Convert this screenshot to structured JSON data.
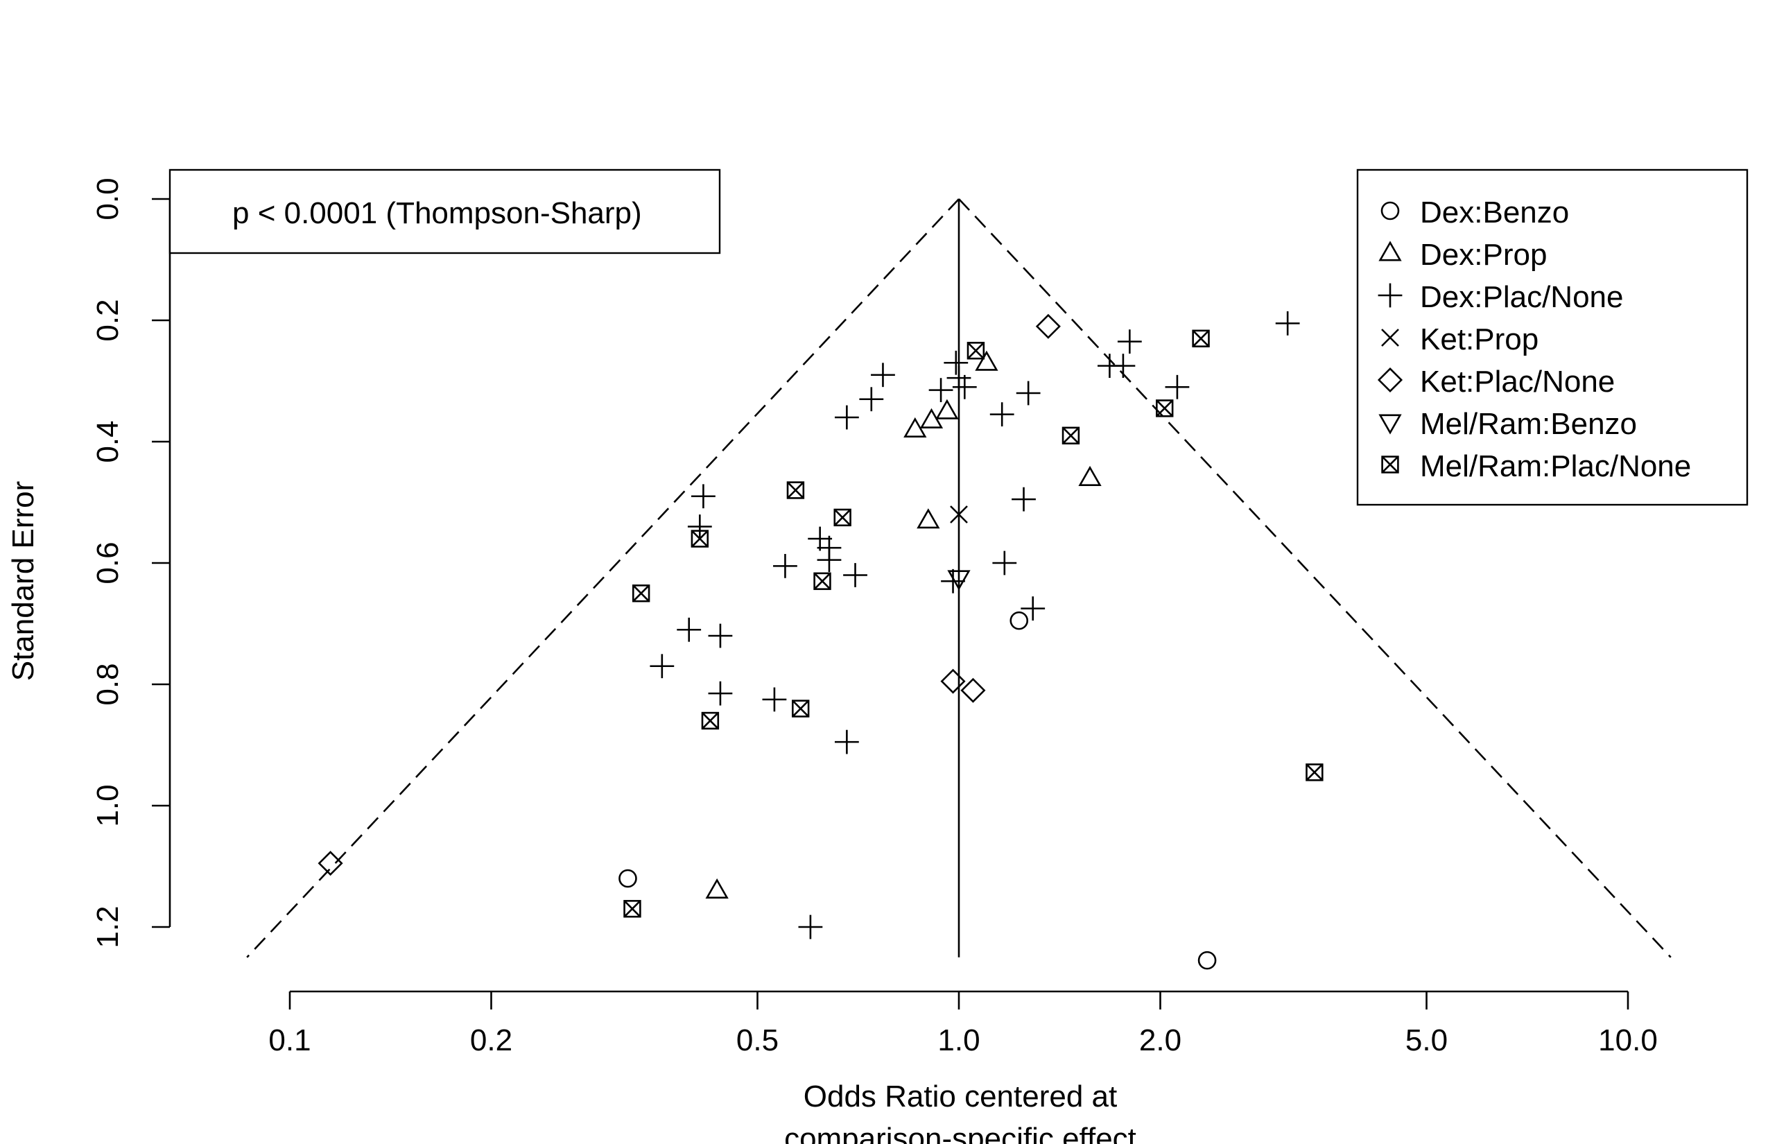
{
  "chart_data": {
    "type": "scatter",
    "title": "",
    "xlabel": "Odds Ratio centered at comparison-specific effect",
    "xlabel_lines": [
      "Odds Ratio centered at",
      "comparison-specific effect"
    ],
    "ylabel": "Standard Error",
    "x_scale": "log",
    "x_ticks": [
      0.1,
      0.2,
      0.5,
      1.0,
      2.0,
      5.0,
      10.0
    ],
    "x_tick_labels": [
      "0.1",
      "0.2",
      "0.5",
      "1.0",
      "2.0",
      "5.0",
      "10.0"
    ],
    "y_ticks": [
      0.0,
      0.2,
      0.4,
      0.6,
      0.8,
      1.0,
      1.2
    ],
    "y_tick_labels": [
      "0.0",
      "0.2",
      "0.4",
      "0.6",
      "0.8",
      "1.0",
      "1.2"
    ],
    "xlim": [
      0.1,
      10.0
    ],
    "ylim": [
      1.25,
      0.0
    ],
    "y_reversed": true,
    "grid": false,
    "annotation": "p < 0.0001 (Thompson-Sharp)",
    "annotation_placement": "top-left",
    "legend_placement": "top-right",
    "funnel": {
      "center": 1.0,
      "se_max": 1.25,
      "z": 1.96
    },
    "series": [
      {
        "name": "Dex:Benzo",
        "marker": "circle",
        "points": [
          [
            0.32,
            1.12
          ],
          [
            1.23,
            0.695
          ],
          [
            2.35,
            1.255
          ]
        ]
      },
      {
        "name": "Dex:Prop",
        "marker": "triangle-up",
        "points": [
          [
            1.1,
            0.27
          ],
          [
            0.86,
            0.38
          ],
          [
            0.91,
            0.365
          ],
          [
            0.96,
            0.35
          ],
          [
            1.57,
            0.46
          ],
          [
            0.9,
            0.53
          ],
          [
            0.435,
            1.14
          ]
        ]
      },
      {
        "name": "Dex:Plac/None",
        "marker": "plus",
        "points": [
          [
            0.99,
            0.27
          ],
          [
            1.0,
            0.295
          ],
          [
            1.02,
            0.31
          ],
          [
            0.94,
            0.315
          ],
          [
            0.77,
            0.29
          ],
          [
            0.74,
            0.33
          ],
          [
            0.68,
            0.36
          ],
          [
            1.68,
            0.275
          ],
          [
            1.8,
            0.235
          ],
          [
            1.76,
            0.275
          ],
          [
            3.1,
            0.205
          ],
          [
            2.12,
            0.31
          ],
          [
            1.27,
            0.32
          ],
          [
            1.16,
            0.355
          ],
          [
            1.25,
            0.495
          ],
          [
            0.415,
            0.49
          ],
          [
            0.41,
            0.54
          ],
          [
            0.62,
            0.56
          ],
          [
            0.64,
            0.575
          ],
          [
            0.64,
            0.595
          ],
          [
            0.7,
            0.62
          ],
          [
            0.55,
            0.605
          ],
          [
            0.98,
            0.63
          ],
          [
            1.17,
            0.6
          ],
          [
            1.29,
            0.675
          ],
          [
            0.395,
            0.71
          ],
          [
            0.44,
            0.72
          ],
          [
            0.36,
            0.77
          ],
          [
            0.44,
            0.815
          ],
          [
            0.53,
            0.825
          ],
          [
            0.68,
            0.895
          ],
          [
            0.6,
            1.2
          ]
        ]
      },
      {
        "name": "Ket:Prop",
        "marker": "cross",
        "points": [
          [
            1.0,
            0.52
          ]
        ]
      },
      {
        "name": "Ket:Plac/None",
        "marker": "diamond",
        "points": [
          [
            1.36,
            0.21
          ],
          [
            0.98,
            0.795
          ],
          [
            1.05,
            0.81
          ],
          [
            0.115,
            1.095
          ]
        ]
      },
      {
        "name": "Mel/Ram:Benzo",
        "marker": "triangle-down",
        "points": [
          [
            1.0,
            0.625
          ]
        ]
      },
      {
        "name": "Mel/Ram:Plac/None",
        "marker": "box-x",
        "points": [
          [
            1.06,
            0.25
          ],
          [
            2.3,
            0.23
          ],
          [
            2.03,
            0.345
          ],
          [
            1.47,
            0.39
          ],
          [
            0.57,
            0.48
          ],
          [
            0.67,
            0.525
          ],
          [
            0.41,
            0.56
          ],
          [
            0.625,
            0.63
          ],
          [
            0.335,
            0.65
          ],
          [
            0.425,
            0.86
          ],
          [
            0.58,
            0.84
          ],
          [
            3.4,
            0.945
          ],
          [
            0.325,
            1.17
          ]
        ]
      }
    ]
  }
}
